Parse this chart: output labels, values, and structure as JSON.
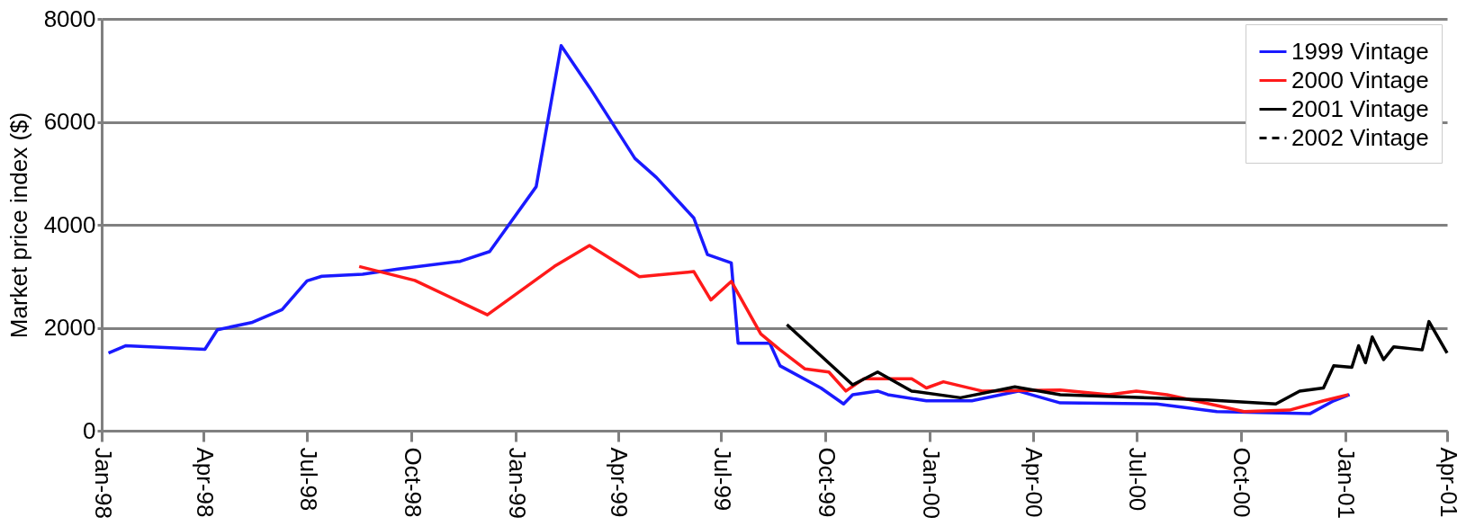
{
  "chart_data": {
    "type": "line",
    "ylabel": "Market price index ($)",
    "xlim": [
      "1998-01-01",
      "2001-04-01"
    ],
    "xticks": [
      {
        "value": "1998-01-01",
        "label": "Jan-98"
      },
      {
        "value": "1998-04-01",
        "label": "Apr-98"
      },
      {
        "value": "1998-07-01",
        "label": "Jul-98"
      },
      {
        "value": "1998-10-01",
        "label": "Oct-98"
      },
      {
        "value": "1999-01-01",
        "label": "Jan-99"
      },
      {
        "value": "1999-04-01",
        "label": "Apr-99"
      },
      {
        "value": "1999-07-01",
        "label": "Jul-99"
      },
      {
        "value": "1999-10-01",
        "label": "Oct-99"
      },
      {
        "value": "2000-01-01",
        "label": "Jan-00"
      },
      {
        "value": "2000-04-01",
        "label": "Apr-00"
      },
      {
        "value": "2000-07-01",
        "label": "Jul-00"
      },
      {
        "value": "2000-10-01",
        "label": "Oct-00"
      },
      {
        "value": "2001-01-01",
        "label": "Jan-01"
      },
      {
        "value": "2001-04-01",
        "label": "Apr-01"
      }
    ],
    "ylim": [
      0,
      8000
    ],
    "yticks": [
      0,
      2000,
      4000,
      6000,
      8000
    ],
    "grid": "y",
    "legend": "top right",
    "marker": "none",
    "series": [
      {
        "name": "1999 Vintage",
        "color": "#1a1aff",
        "line_style": "solid",
        "x": [
          "1998-01-07",
          "1998-01-22",
          "1998-04-02",
          "1998-04-13",
          "1998-05-13",
          "1998-06-09",
          "1998-07-01",
          "1998-07-14",
          "1998-08-19",
          "1998-09-19",
          "1998-11-13",
          "1998-12-09",
          "1999-01-19",
          "1999-02-10",
          "1999-03-07",
          "1999-04-16",
          "1999-05-05",
          "1999-06-07",
          "1999-06-19",
          "1999-07-10",
          "1999-07-16",
          "1999-08-13",
          "1999-08-22",
          "1999-09-27",
          "1999-10-17",
          "1999-10-25",
          "1999-11-16",
          "1999-11-25",
          "1999-12-29",
          "2000-02-07",
          "2000-03-19",
          "2000-04-25",
          "2000-07-19",
          "2000-09-10",
          "2000-12-01",
          "2000-12-22",
          "2001-01-05"
        ],
        "values": [
          1510,
          1650,
          1580,
          1960,
          2100,
          2350,
          2910,
          3000,
          3040,
          3140,
          3290,
          3480,
          4740,
          7480,
          6670,
          5290,
          4920,
          4130,
          3420,
          3260,
          1700,
          1700,
          1260,
          830,
          520,
          700,
          770,
          700,
          580,
          580,
          770,
          540,
          520,
          370,
          330,
          580,
          700
        ]
      },
      {
        "name": "2000 Vintage",
        "color": "#ff1a1a",
        "line_style": "solid",
        "x": [
          "1998-08-16",
          "1998-10-04",
          "1998-12-07",
          "1999-02-04",
          "1999-03-07",
          "1999-04-20",
          "1999-06-07",
          "1999-06-22",
          "1999-07-10",
          "1999-08-05",
          "1999-08-22",
          "1999-09-13",
          "1999-10-04",
          "1999-10-19",
          "1999-11-04",
          "1999-12-16",
          "1999-12-29",
          "2000-01-13",
          "2000-02-16",
          "2000-04-25",
          "2000-06-07",
          "2000-07-01",
          "2000-07-28",
          "2000-09-10",
          "2000-10-04",
          "2000-11-13",
          "2000-12-13",
          "2001-01-04"
        ],
        "values": [
          3190,
          2920,
          2250,
          3190,
          3600,
          2990,
          3090,
          2540,
          2900,
          1880,
          1570,
          1200,
          1140,
          770,
          1010,
          1010,
          830,
          950,
          770,
          790,
          700,
          770,
          700,
          490,
          370,
          400,
          580,
          700
        ]
      },
      {
        "name": "2001 Vintage",
        "color": "#000000",
        "line_style": "solid",
        "x": [
          "1999-08-28",
          "1999-10-25",
          "1999-11-16",
          "1999-12-16",
          "2000-01-28",
          "2000-03-16",
          "2000-04-25",
          "2000-09-01",
          "2000-11-01",
          "2000-11-22",
          "2000-12-13",
          "2000-12-22",
          "2001-01-07",
          "2001-01-13",
          "2001-01-19",
          "2001-01-25",
          "2001-02-04",
          "2001-02-13",
          "2001-03-10",
          "2001-03-16",
          "2001-04-01"
        ],
        "values": [
          2060,
          890,
          1140,
          770,
          640,
          850,
          700,
          600,
          520,
          770,
          830,
          1260,
          1230,
          1650,
          1320,
          1820,
          1380,
          1630,
          1570,
          2120,
          1510
        ]
      },
      {
        "name": "2002 Vintage",
        "color": "#000000",
        "line_style": "dashed"
      }
    ]
  }
}
